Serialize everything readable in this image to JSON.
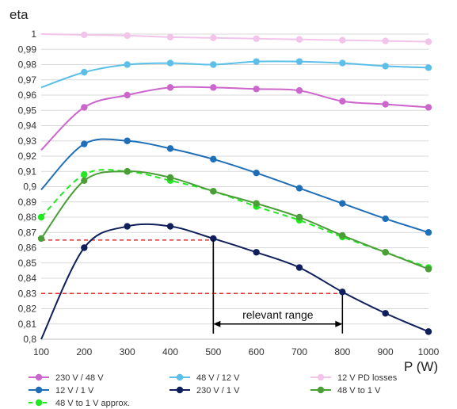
{
  "chart_data": {
    "type": "line",
    "ylabel": "eta",
    "xlabel": "P (W)",
    "xlim": [
      100,
      1000
    ],
    "ylim": [
      0.8,
      1.0
    ],
    "x_ticks": [
      100,
      200,
      300,
      400,
      500,
      600,
      700,
      800,
      900,
      1000
    ],
    "y_ticks": [
      0.8,
      0.81,
      0.82,
      0.83,
      0.84,
      0.85,
      0.86,
      0.87,
      0.88,
      0.89,
      0.9,
      0.91,
      0.92,
      0.93,
      0.94,
      0.95,
      0.96,
      0.97,
      0.98,
      0.99,
      1.0
    ],
    "grid": "horizontal",
    "legend_position": "bottom",
    "series": [
      {
        "name": "230 V / 48 V",
        "color": "#cc66cc",
        "dashed": false,
        "points": [
          [
            100,
            0.924
          ],
          [
            200,
            0.952
          ],
          [
            300,
            0.96
          ],
          [
            400,
            0.965
          ],
          [
            500,
            0.965
          ],
          [
            600,
            0.964
          ],
          [
            700,
            0.963
          ],
          [
            800,
            0.956
          ],
          [
            900,
            0.954
          ],
          [
            1000,
            0.952
          ]
        ],
        "marker_from": 1
      },
      {
        "name": "48 V / 12 V",
        "color": "#5cbfe8",
        "dashed": false,
        "points": [
          [
            100,
            0.965
          ],
          [
            200,
            0.975
          ],
          [
            300,
            0.98
          ],
          [
            400,
            0.981
          ],
          [
            500,
            0.98
          ],
          [
            600,
            0.982
          ],
          [
            700,
            0.982
          ],
          [
            800,
            0.981
          ],
          [
            900,
            0.979
          ],
          [
            1000,
            0.978
          ]
        ],
        "marker_from": 1
      },
      {
        "name": "12 V PD losses",
        "color": "#f2c4ea",
        "dashed": false,
        "points": [
          [
            100,
            1.0
          ],
          [
            200,
            0.9995
          ],
          [
            300,
            0.999
          ],
          [
            400,
            0.998
          ],
          [
            500,
            0.9975
          ],
          [
            600,
            0.997
          ],
          [
            700,
            0.9965
          ],
          [
            800,
            0.996
          ],
          [
            900,
            0.9955
          ],
          [
            1000,
            0.995
          ]
        ],
        "marker_from": 1
      },
      {
        "name": "12 V / 1 V",
        "color": "#1f6fb8",
        "dashed": false,
        "points": [
          [
            100,
            0.898
          ],
          [
            200,
            0.928
          ],
          [
            300,
            0.93
          ],
          [
            400,
            0.925
          ],
          [
            500,
            0.918
          ],
          [
            600,
            0.909
          ],
          [
            700,
            0.899
          ],
          [
            800,
            0.889
          ],
          [
            900,
            0.879
          ],
          [
            1000,
            0.87
          ]
        ],
        "marker_from": 1
      },
      {
        "name": "230 V / 1 V",
        "color": "#0e1f5c",
        "dashed": false,
        "points": [
          [
            100,
            0.8
          ],
          [
            200,
            0.86
          ],
          [
            300,
            0.874
          ],
          [
            400,
            0.874
          ],
          [
            500,
            0.866
          ],
          [
            600,
            0.857
          ],
          [
            700,
            0.847
          ],
          [
            800,
            0.831
          ],
          [
            900,
            0.817
          ],
          [
            1000,
            0.805
          ]
        ],
        "marker_from": 1
      },
      {
        "name": "48 V to 1 V",
        "color": "#4a9e36",
        "dashed": false,
        "points": [
          [
            100,
            0.866
          ],
          [
            200,
            0.904
          ],
          [
            300,
            0.91
          ],
          [
            400,
            0.906
          ],
          [
            500,
            0.897
          ],
          [
            600,
            0.889
          ],
          [
            700,
            0.88
          ],
          [
            800,
            0.868
          ],
          [
            900,
            0.857
          ],
          [
            1000,
            0.846
          ]
        ],
        "marker_from": 0
      },
      {
        "name": "48 V to 1 V approx.",
        "color": "#22e822",
        "dashed": true,
        "points": [
          [
            100,
            0.88
          ],
          [
            200,
            0.908
          ],
          [
            300,
            0.91
          ],
          [
            400,
            0.904
          ],
          [
            500,
            0.897
          ],
          [
            600,
            0.887
          ],
          [
            700,
            0.878
          ],
          [
            800,
            0.867
          ],
          [
            900,
            0.857
          ],
          [
            1000,
            0.847
          ]
        ],
        "marker_from": 0
      }
    ],
    "reference_lines": [
      {
        "y": 0.865,
        "x_from": 100,
        "x_to": 500,
        "color": "#e03030"
      },
      {
        "y": 0.83,
        "x_from": 100,
        "x_to": 800,
        "color": "#e03030"
      }
    ],
    "annotation": {
      "label": "relevant range",
      "x_from": 500,
      "x_to": 800,
      "y_arrow": 0.81,
      "y_label": 0.813
    }
  }
}
